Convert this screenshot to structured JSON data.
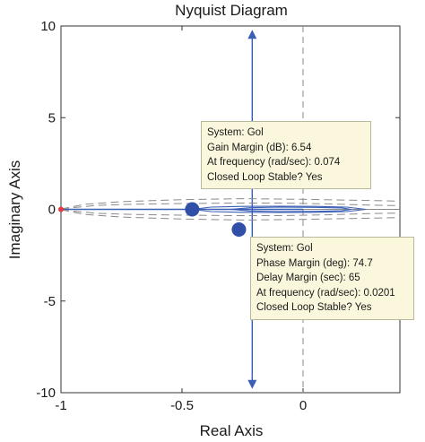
{
  "chart_data": {
    "type": "line",
    "title": "Nyquist Diagram",
    "xlabel": "Real Axis",
    "ylabel": "Imaginary Axis",
    "xlim": [
      -1,
      0.4
    ],
    "ylim": [
      -10,
      10
    ],
    "x_ticks": [
      -1,
      -0.5,
      0
    ],
    "x_tick_labels": [
      "-1",
      "-0.5",
      "0"
    ],
    "y_ticks": [
      -10,
      -5,
      0,
      5,
      10
    ],
    "y_tick_labels": [
      "-10",
      "-5",
      "0",
      "5",
      "10"
    ],
    "grid": false,
    "colors": {
      "curve": "#3a5fb5",
      "marker": "#2f4fa8",
      "critical_point": "#e8383d",
      "dashed": "#8a8a8a",
      "axis": "#333333"
    },
    "series": [
      {
        "type": "line",
        "points": [
          [
            -0.21,
            9.55
          ],
          [
            -0.21,
            6
          ],
          [
            -0.21,
            3
          ],
          [
            -0.21,
            1.5
          ],
          [
            -0.21,
            0.9
          ],
          [
            -0.21,
            0.35
          ],
          [
            -0.21,
            -0.35
          ],
          [
            -0.21,
            -0.9
          ],
          [
            -0.21,
            -1.5
          ],
          [
            -0.21,
            -3
          ],
          [
            -0.21,
            -6
          ],
          [
            -0.21,
            -9.55
          ]
        ],
        "arrows": [
          [
            -0.21,
            9.55
          ],
          [
            -0.21,
            -9.55
          ]
        ]
      },
      {
        "type": "line",
        "points": [
          [
            -1,
            0
          ],
          [
            -0.8,
            0
          ],
          [
            -0.6,
            0
          ],
          [
            -0.458,
            0
          ],
          [
            -0.3,
            0
          ],
          [
            -0.1,
            0
          ],
          [
            0,
            0
          ]
        ]
      },
      {
        "type": "loop",
        "points": [
          [
            -0.458,
            0
          ],
          [
            -0.38,
            0.12
          ],
          [
            -0.25,
            0.16
          ],
          [
            -0.1,
            0.17
          ],
          [
            0.05,
            0.16
          ],
          [
            0.18,
            0.12
          ],
          [
            0.26,
            0
          ],
          [
            0.18,
            -0.12
          ],
          [
            0.05,
            -0.16
          ],
          [
            -0.1,
            -0.17
          ],
          [
            -0.25,
            -0.16
          ],
          [
            -0.38,
            -0.12
          ],
          [
            -0.458,
            0
          ]
        ]
      },
      {
        "type": "loop",
        "points": [
          [
            -0.3,
            0
          ],
          [
            -0.22,
            0.09
          ],
          [
            -0.1,
            0.12
          ],
          [
            0.05,
            0.11
          ],
          [
            0.16,
            0.08
          ],
          [
            0.2,
            0
          ],
          [
            0.16,
            -0.08
          ],
          [
            0.05,
            -0.11
          ],
          [
            -0.1,
            -0.12
          ],
          [
            -0.22,
            -0.09
          ],
          [
            -0.3,
            0
          ]
        ]
      },
      {
        "type": "dashed",
        "points": [
          [
            -1,
            0.02
          ],
          [
            -0.9,
            0.28
          ],
          [
            -0.75,
            0.42
          ],
          [
            -0.5,
            0.53
          ],
          [
            -0.25,
            0.58
          ],
          [
            0,
            0.55
          ],
          [
            0.2,
            0.5
          ],
          [
            0.4,
            0.45
          ]
        ]
      },
      {
        "type": "dashed",
        "points": [
          [
            -1,
            -0.02
          ],
          [
            -0.9,
            -0.28
          ],
          [
            -0.75,
            -0.42
          ],
          [
            -0.5,
            -0.53
          ],
          [
            -0.25,
            -0.58
          ],
          [
            0,
            -0.55
          ],
          [
            0.2,
            -0.5
          ],
          [
            0.4,
            -0.45
          ]
        ]
      },
      {
        "type": "dashed",
        "points": [
          [
            -1,
            0.03
          ],
          [
            -0.85,
            0.22
          ],
          [
            -0.7,
            0.28
          ],
          [
            -0.5,
            0.32
          ],
          [
            -0.3,
            0.34
          ],
          [
            -0.1,
            0.34
          ],
          [
            0.1,
            0.3
          ],
          [
            0.25,
            0.24
          ],
          [
            0.4,
            0.2
          ]
        ]
      },
      {
        "type": "dashed",
        "points": [
          [
            -1,
            -0.03
          ],
          [
            -0.85,
            -0.22
          ],
          [
            -0.7,
            -0.28
          ],
          [
            -0.5,
            -0.32
          ],
          [
            -0.3,
            -0.34
          ],
          [
            -0.1,
            -0.34
          ],
          [
            0.1,
            -0.3
          ],
          [
            0.25,
            -0.24
          ],
          [
            0.4,
            -0.2
          ]
        ]
      }
    ],
    "reference_lines": {
      "x_equals_zero_dashed": true,
      "y_equals_zero": true
    },
    "markers": [
      {
        "x": -0.458,
        "y": 0,
        "kind": "gain-margin"
      },
      {
        "x": -0.265,
        "y": -1.1,
        "kind": "phase-margin"
      },
      {
        "x": -1,
        "y": 0,
        "kind": "critical-point"
      }
    ],
    "annotations": [
      {
        "lines": [
          {
            "key": "System",
            "value": "Gol"
          },
          {
            "key": "Gain Margin (dB)",
            "value": "6.54"
          },
          {
            "key": "At frequency (rad/sec)",
            "value": "0.074"
          },
          {
            "key": "Closed Loop Stable?",
            "value": "Yes"
          }
        ]
      },
      {
        "lines": [
          {
            "key": "System",
            "value": "Gol"
          },
          {
            "key": "Phase Margin (deg)",
            "value": "74.7"
          },
          {
            "key": "Delay Margin (sec)",
            "value": "65"
          },
          {
            "key": "At frequency (rad/sec)",
            "value": "0.0201"
          },
          {
            "key": "Closed Loop Stable?",
            "value": "Yes"
          }
        ]
      }
    ]
  }
}
